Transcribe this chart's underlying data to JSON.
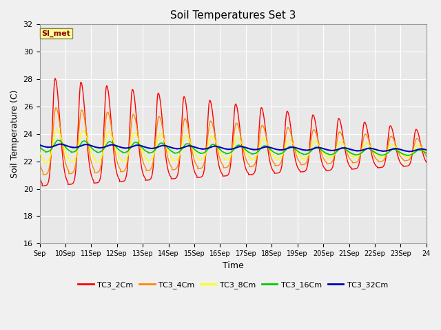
{
  "title": "Soil Temperatures Set 3",
  "xlabel": "Time",
  "ylabel": "Soil Temperature (C)",
  "ylim": [
    16,
    32
  ],
  "annotation": "SI_met",
  "plot_bg_color": "#e8e8e8",
  "fig_bg_color": "#f0f0f0",
  "series_colors": {
    "TC3_2Cm": "#ff0000",
    "TC3_4Cm": "#ff8800",
    "TC3_8Cm": "#ffff00",
    "TC3_16Cm": "#00cc00",
    "TC3_32Cm": "#0000bb"
  },
  "xtick_labels": [
    "Sep",
    "10Sep",
    "11Sep",
    "12Sep",
    "13Sep",
    "14Sep",
    "15Sep",
    "16Sep",
    "17Sep",
    "18Sep",
    "19Sep",
    "20Sep",
    "21Sep",
    "22Sep",
    "23Sep",
    "24"
  ],
  "ytick_values": [
    16,
    18,
    20,
    22,
    24,
    26,
    28,
    30,
    32
  ],
  "n_days": 15,
  "ppd": 288
}
